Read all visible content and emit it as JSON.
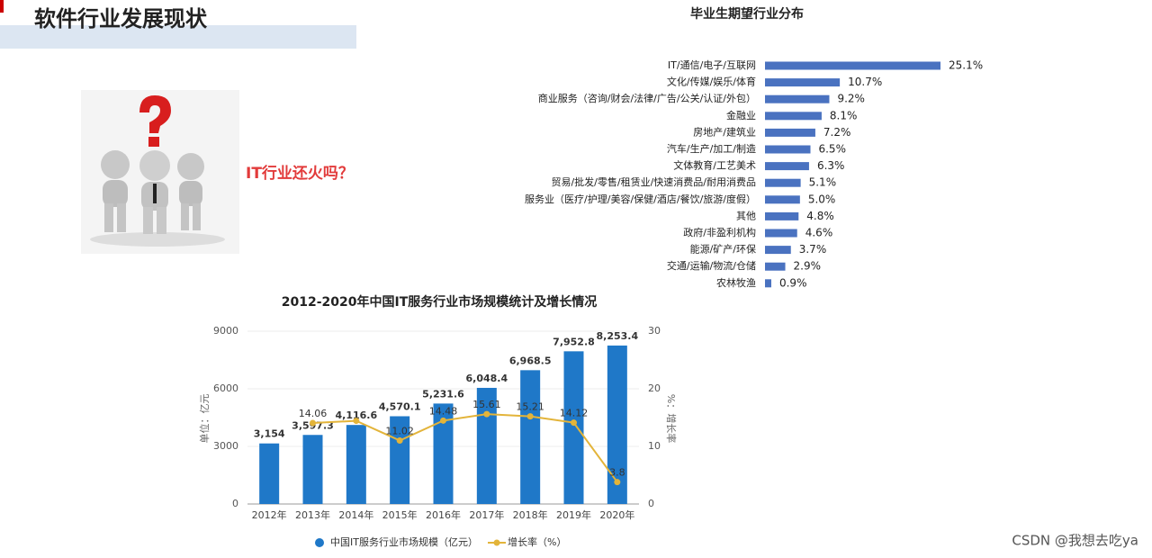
{
  "header": {
    "title": "软件行业发展现状"
  },
  "question": "IT行业还火吗？",
  "watermark": "CSDN @我想去吃ya",
  "chart_data": [
    {
      "type": "hbar",
      "title": "毕业生期望行业分布",
      "categories": [
        "IT/通信/电子/互联网",
        "文化/传媒/娱乐/体育",
        "商业服务（咨询/财会/法律/广告/公关/认证/外包）",
        "金融业",
        "房地产/建筑业",
        "汽车/生产/加工/制造",
        "文体教育/工艺美术",
        "贸易/批发/零售/租赁业/快速消费品/耐用消费品",
        "服务业（医疗/护理/美容/保健/酒店/餐饮/旅游/度假）",
        "其他",
        "政府/非盈利机构",
        "能源/矿产/环保",
        "交通/运输/物流/仓储",
        "农林牧渔"
      ],
      "values": [
        25.1,
        10.7,
        9.2,
        8.1,
        7.2,
        6.5,
        6.3,
        5.1,
        5.0,
        4.8,
        4.6,
        3.7,
        2.9,
        0.9
      ],
      "value_labels": [
        "25.1%",
        "10.7%",
        "9.2%",
        "8.1%",
        "7.2%",
        "6.5%",
        "6.3%",
        "5.1%",
        "5.0%",
        "4.8%",
        "4.6%",
        "3.7%",
        "2.9%",
        "0.9%"
      ],
      "color": "#4a72c0"
    },
    {
      "type": "bar-line",
      "title": "2012-2020年中国IT服务行业市场规模统计及增长情况",
      "categories": [
        "2012年",
        "2013年",
        "2014年",
        "2015年",
        "2016年",
        "2017年",
        "2018年",
        "2019年",
        "2020年"
      ],
      "series": [
        {
          "name": "中国IT服务行业市场规模（亿元）",
          "color": "#1f78c8",
          "values": [
            3154,
            3597.3,
            4116.6,
            4570.1,
            5231.6,
            6048.4,
            6968.5,
            7952.8,
            8253.4
          ],
          "value_labels": [
            "3,154",
            "3,597.3",
            "4,116.6",
            "4,570.1",
            "5,231.6",
            "6,048.4",
            "6,968.5",
            "7,952.8",
            "8,253.4"
          ]
        },
        {
          "name": "增长率（%）",
          "color": "#e3b43a",
          "axis": "y2",
          "values": [
            null,
            14.06,
            14.44,
            11.02,
            14.48,
            15.61,
            15.21,
            14.12,
            3.8
          ],
          "value_labels": [
            null,
            "14.06",
            null,
            "11.02",
            "14.48",
            "15.61",
            "15.21",
            "14.12",
            "3.8"
          ]
        }
      ],
      "ylabel": "单位：亿元",
      "y2label": "%：增长率",
      "ylim": [
        0,
        9000
      ],
      "yticks": [
        0,
        3000,
        6000,
        9000
      ],
      "y2lim": [
        0,
        30
      ],
      "y2ticks": [
        0,
        10,
        20,
        30
      ],
      "grid": true
    }
  ]
}
